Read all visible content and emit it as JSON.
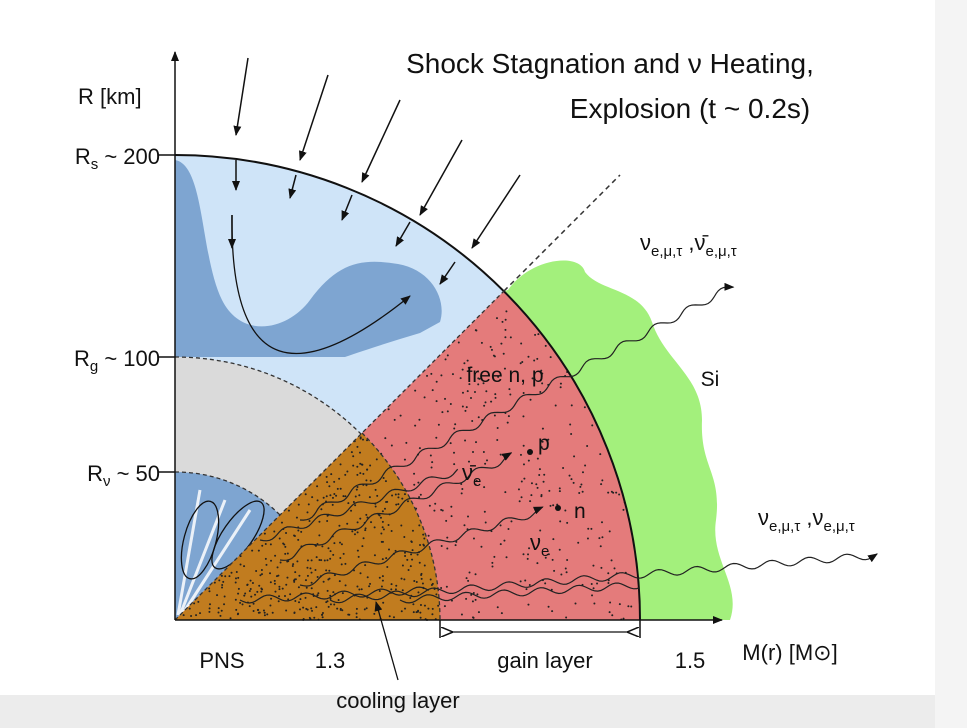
{
  "title": {
    "line1": "Shock Stagnation and ν Heating,",
    "line2": "Explosion  (t ~ 0.2s)"
  },
  "y_axis": {
    "label": "R [km]",
    "radii": [
      {
        "symbol": "R",
        "subscript": "s",
        "value": " ~ 200"
      },
      {
        "symbol": "R",
        "subscript": "g",
        "value": " ~ 100"
      },
      {
        "symbol": "R",
        "subscript": "ν",
        "value": " ~ 50"
      }
    ]
  },
  "x_axis": {
    "ticks": [
      "PNS",
      "1.3",
      "1.5"
    ],
    "gain_layer": "gain layer",
    "label": "M(r) [M⊙]"
  },
  "regions": {
    "cooling_layer": "cooling layer",
    "free_nucleons": "free n, p",
    "silicon": "Si"
  },
  "particles": {
    "proton": "p",
    "neutron": "n",
    "antineutrino": {
      "symbol": "ν̄",
      "subscript": "e"
    },
    "neutrino": {
      "symbol": "ν",
      "subscript": "e"
    }
  },
  "emission": {
    "upper": {
      "a": "ν",
      "a_sub": "e,μ,τ",
      "b": " ,ν̄",
      "b_sub": "e,μ,τ"
    },
    "lower": {
      "a": "ν",
      "a_sub": "e,μ,τ",
      "b": " ,ν",
      "b_sub": "e,μ,τ"
    }
  }
}
